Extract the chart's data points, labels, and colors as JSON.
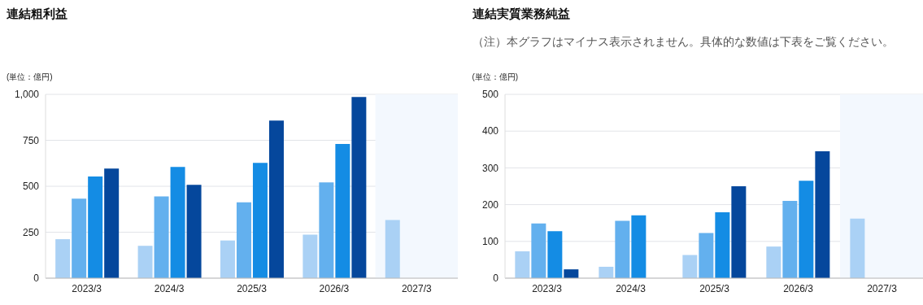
{
  "chart_data": [
    {
      "type": "bar",
      "title": "連結粗利益",
      "ylabel": "(単位：億円)",
      "categories": [
        "2023/3",
        "2024/3",
        "2025/3",
        "2026/3",
        "2027/3"
      ],
      "series": [
        {
          "color": "#aad1f5",
          "values": [
            212,
            176,
            205,
            237,
            316
          ]
        },
        {
          "color": "#63b0ee",
          "values": [
            433,
            445,
            413,
            521,
            null
          ]
        },
        {
          "color": "#148ce4",
          "values": [
            553,
            605,
            627,
            730,
            null
          ]
        },
        {
          "color": "#05479c",
          "values": [
            596,
            508,
            857,
            986,
            null
          ]
        }
      ],
      "ylim": [
        0,
        1000
      ],
      "yticks": [
        0,
        250,
        500,
        750,
        {
          "value": 1000,
          "label": "1,000"
        }
      ],
      "grid": "y",
      "legend": false,
      "bands": [
        {
          "axis": "x",
          "from": "2027/3",
          "to": "2027/3",
          "color": "#f3f8fe"
        }
      ]
    },
    {
      "type": "bar",
      "title": "連結実質業務純益",
      "subtitle": "（注）本グラフはマイナス表示されません。具体的な数値は下表をご覧ください。",
      "ylabel": "(単位：億円)",
      "categories": [
        "2023/3",
        "2024/3",
        "2025/3",
        "2026/3",
        "2027/3"
      ],
      "series": [
        {
          "color": "#aad1f5",
          "values": [
            73,
            31,
            63,
            86,
            162
          ]
        },
        {
          "color": "#63b0ee",
          "values": [
            149,
            156,
            123,
            210,
            null
          ]
        },
        {
          "color": "#148ce4",
          "values": [
            128,
            171,
            179,
            265,
            null
          ]
        },
        {
          "color": "#05479c",
          "values": [
            24,
            null,
            250,
            345,
            null
          ]
        }
      ],
      "ylim": [
        0,
        500
      ],
      "yticks": [
        0,
        100,
        200,
        300,
        400,
        500
      ],
      "grid": "y",
      "legend": false,
      "bands": [
        {
          "axis": "x",
          "from": "2027/3",
          "to": "2027/3",
          "color": "#f3f8fe"
        }
      ]
    }
  ]
}
